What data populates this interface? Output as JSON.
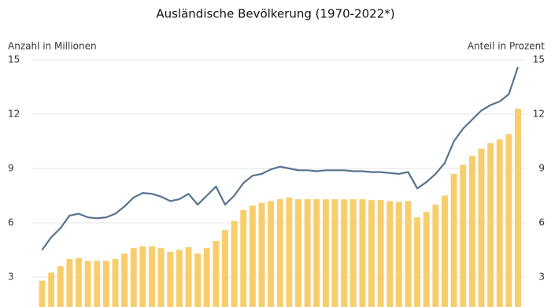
{
  "chart_data": {
    "type": "combo",
    "title": "Ausländische Bevölkerung (1970-2022*)",
    "y_label": "Anzahl in Millionen",
    "y2_label": "Anteil in Prozent",
    "ylim": [
      1.35,
      15
    ],
    "yticks": [
      3,
      6,
      9,
      12,
      15
    ],
    "y2lim": [
      1.35,
      15
    ],
    "y2ticks": [
      3,
      6,
      9,
      12,
      15
    ],
    "grid": true,
    "series": [
      {
        "type": "bar",
        "color": "#f8cd6c",
        "values": [
          2.8,
          3.25,
          3.6,
          4.0,
          4.05,
          3.9,
          3.9,
          3.9,
          4.0,
          4.3,
          4.6,
          4.7,
          4.7,
          4.6,
          4.4,
          4.5,
          4.65,
          4.3,
          4.6,
          5.0,
          5.6,
          6.1,
          6.7,
          6.95,
          7.1,
          7.2,
          7.3,
          7.4,
          7.3,
          7.3,
          7.3,
          7.3,
          7.3,
          7.3,
          7.3,
          7.3,
          7.25,
          7.25,
          7.2,
          7.15,
          7.2,
          6.3,
          6.6,
          7.0,
          7.5,
          8.7,
          9.2,
          9.7,
          10.1,
          10.4,
          10.6,
          10.9,
          12.3
        ]
      },
      {
        "type": "line",
        "axis": "y2",
        "color": "#56728e",
        "values": [
          4.5,
          5.2,
          5.7,
          6.4,
          6.5,
          6.3,
          6.25,
          6.3,
          6.5,
          6.9,
          7.4,
          7.65,
          7.6,
          7.45,
          7.2,
          7.3,
          7.6,
          7.0,
          7.5,
          8.0,
          7.0,
          7.5,
          8.2,
          8.6,
          8.7,
          8.95,
          9.1,
          9.0,
          8.9,
          8.9,
          8.85,
          8.9,
          8.9,
          8.9,
          8.85,
          8.85,
          8.8,
          8.8,
          8.75,
          8.7,
          8.8,
          7.9,
          8.25,
          8.7,
          9.3,
          10.5,
          11.2,
          11.7,
          12.2,
          12.5,
          12.7,
          13.1,
          14.6
        ]
      }
    ]
  }
}
